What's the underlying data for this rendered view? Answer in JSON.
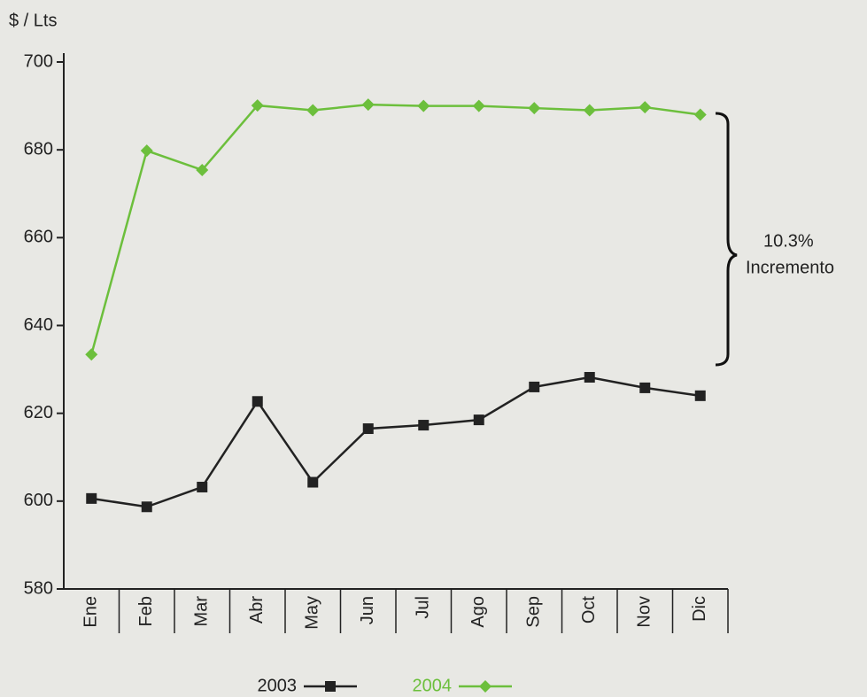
{
  "chart_data": {
    "type": "line",
    "y_axis_label": "$ / Lts",
    "categories": [
      "Ene",
      "Feb",
      "Mar",
      "Abr",
      "May",
      "Jun",
      "Jul",
      "Ago",
      "Sep",
      "Oct",
      "Nov",
      "Dic"
    ],
    "series": [
      {
        "name": "2003",
        "color": "#222222",
        "marker": "square",
        "values": [
          600.6,
          598.7,
          603.2,
          622.7,
          604.3,
          616.5,
          617.3,
          618.5,
          626,
          628.2,
          625.8,
          624
        ]
      },
      {
        "name": "2004",
        "color": "#6cbf3c",
        "marker": "diamond",
        "values": [
          633.4,
          679.8,
          675.4,
          690.1,
          689,
          690.3,
          690,
          690,
          689.5,
          689,
          689.7,
          688
        ]
      }
    ],
    "ylim": [
      580,
      700
    ],
    "yticks": [
      580,
      600,
      620,
      640,
      660,
      680,
      700
    ],
    "annotation": {
      "value": "10.3%",
      "text": "Incremento"
    }
  }
}
